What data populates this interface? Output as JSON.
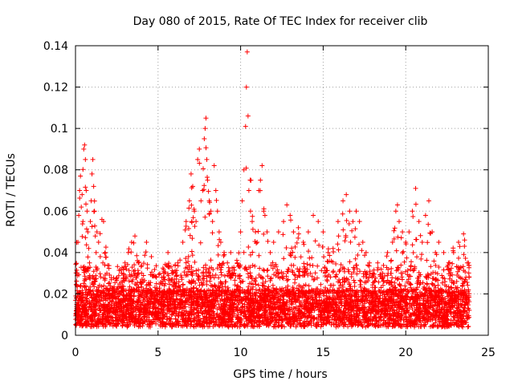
{
  "chart_data": {
    "type": "scatter",
    "title": "Day 080 of 2015, Rate Of TEC Index for receiver clib",
    "xlabel": "GPS time / hours",
    "ylabel": "ROTI / TECUs",
    "xlim": [
      0,
      25
    ],
    "ylim": [
      0,
      0.14
    ],
    "xticks": [
      0,
      5,
      10,
      15,
      20,
      25
    ],
    "xtick_labels": [
      "0",
      "5",
      "10",
      "15",
      "20",
      "25"
    ],
    "yticks": [
      0,
      0.02,
      0.04,
      0.06,
      0.08,
      0.1,
      0.12,
      0.14
    ],
    "ytick_labels": [
      "0",
      "0.02",
      "0.04",
      "0.06",
      "0.08",
      "0.1",
      "0.12",
      "0.14"
    ],
    "grid": true,
    "marker": "+",
    "marker_color": "#ff0000",
    "series": [
      {
        "name": "ROTI",
        "points": [
          [
            0.05,
            0.012
          ],
          [
            0.1,
            0.03
          ],
          [
            0.15,
            0.045
          ],
          [
            0.2,
            0.058
          ],
          [
            0.25,
            0.07
          ],
          [
            0.3,
            0.077
          ],
          [
            0.35,
            0.062
          ],
          [
            0.4,
            0.068
          ],
          [
            0.45,
            0.055
          ],
          [
            0.5,
            0.09
          ],
          [
            0.55,
            0.092
          ],
          [
            0.6,
            0.085
          ],
          [
            0.65,
            0.07
          ],
          [
            0.7,
            0.06
          ],
          [
            0.75,
            0.05
          ],
          [
            0.8,
            0.042
          ],
          [
            0.85,
            0.035
          ],
          [
            0.9,
            0.055
          ],
          [
            0.95,
            0.065
          ],
          [
            1.0,
            0.078
          ],
          [
            1.05,
            0.085
          ],
          [
            1.1,
            0.072
          ],
          [
            1.15,
            0.06
          ],
          [
            1.2,
            0.048
          ],
          [
            1.25,
            0.04
          ],
          [
            1.3,
            0.05
          ],
          [
            1.4,
            0.045
          ],
          [
            1.5,
            0.038
          ],
          [
            1.6,
            0.056
          ],
          [
            1.7,
            0.055
          ],
          [
            1.8,
            0.04
          ],
          [
            1.9,
            0.03
          ],
          [
            2.0,
            0.025
          ],
          [
            2.2,
            0.02
          ],
          [
            2.5,
            0.022
          ],
          [
            2.8,
            0.03
          ],
          [
            3.0,
            0.035
          ],
          [
            3.2,
            0.04
          ],
          [
            3.4,
            0.045
          ],
          [
            3.6,
            0.048
          ],
          [
            3.8,
            0.035
          ],
          [
            4.0,
            0.03
          ],
          [
            4.3,
            0.045
          ],
          [
            4.6,
            0.038
          ],
          [
            4.9,
            0.028
          ],
          [
            5.3,
            0.025
          ],
          [
            5.6,
            0.04
          ],
          [
            5.9,
            0.03
          ],
          [
            6.2,
            0.035
          ],
          [
            6.5,
            0.045
          ],
          [
            6.7,
            0.055
          ],
          [
            6.9,
            0.065
          ],
          [
            7.0,
            0.078
          ],
          [
            7.1,
            0.072
          ],
          [
            7.2,
            0.06
          ],
          [
            7.3,
            0.055
          ],
          [
            7.4,
            0.085
          ],
          [
            7.5,
            0.09
          ],
          [
            7.6,
            0.065
          ],
          [
            7.7,
            0.07
          ],
          [
            7.8,
            0.095
          ],
          [
            7.85,
            0.1
          ],
          [
            7.9,
            0.105
          ],
          [
            7.95,
            0.085
          ],
          [
            8.0,
            0.075
          ],
          [
            8.1,
            0.065
          ],
          [
            8.2,
            0.06
          ],
          [
            8.3,
            0.055
          ],
          [
            8.4,
            0.082
          ],
          [
            8.5,
            0.07
          ],
          [
            8.6,
            0.06
          ],
          [
            8.7,
            0.05
          ],
          [
            8.8,
            0.045
          ],
          [
            9.0,
            0.04
          ],
          [
            9.2,
            0.035
          ],
          [
            9.4,
            0.04
          ],
          [
            9.6,
            0.03
          ],
          [
            9.8,
            0.035
          ],
          [
            10.0,
            0.05
          ],
          [
            10.1,
            0.065
          ],
          [
            10.2,
            0.08
          ],
          [
            10.3,
            0.101
          ],
          [
            10.35,
            0.12
          ],
          [
            10.4,
            0.137
          ],
          [
            10.45,
            0.106
          ],
          [
            10.5,
            0.07
          ],
          [
            10.6,
            0.06
          ],
          [
            10.7,
            0.055
          ],
          [
            10.9,
            0.05
          ],
          [
            11.0,
            0.045
          ],
          [
            11.1,
            0.07
          ],
          [
            11.2,
            0.075
          ],
          [
            11.3,
            0.082
          ],
          [
            11.4,
            0.06
          ],
          [
            11.6,
            0.05
          ],
          [
            11.8,
            0.04
          ],
          [
            12.0,
            0.045
          ],
          [
            12.3,
            0.05
          ],
          [
            12.6,
            0.055
          ],
          [
            12.8,
            0.063
          ],
          [
            13.0,
            0.058
          ],
          [
            13.2,
            0.05
          ],
          [
            13.5,
            0.052
          ],
          [
            13.8,
            0.045
          ],
          [
            14.1,
            0.05
          ],
          [
            14.4,
            0.058
          ],
          [
            14.7,
            0.055
          ],
          [
            15.0,
            0.05
          ],
          [
            15.3,
            0.04
          ],
          [
            15.6,
            0.042
          ],
          [
            15.9,
            0.055
          ],
          [
            16.2,
            0.065
          ],
          [
            16.4,
            0.068
          ],
          [
            16.6,
            0.06
          ],
          [
            16.8,
            0.055
          ],
          [
            17.0,
            0.06
          ],
          [
            17.2,
            0.055
          ],
          [
            17.4,
            0.045
          ],
          [
            17.6,
            0.04
          ],
          [
            17.8,
            0.035
          ],
          [
            18.0,
            0.03
          ],
          [
            18.3,
            0.035
          ],
          [
            18.6,
            0.03
          ],
          [
            18.9,
            0.04
          ],
          [
            19.2,
            0.045
          ],
          [
            19.4,
            0.06
          ],
          [
            19.5,
            0.063
          ],
          [
            19.6,
            0.055
          ],
          [
            19.8,
            0.05
          ],
          [
            20.0,
            0.045
          ],
          [
            20.2,
            0.05
          ],
          [
            20.4,
            0.06
          ],
          [
            20.6,
            0.071
          ],
          [
            20.8,
            0.055
          ],
          [
            21.0,
            0.045
          ],
          [
            21.2,
            0.058
          ],
          [
            21.4,
            0.065
          ],
          [
            21.6,
            0.05
          ],
          [
            21.8,
            0.04
          ],
          [
            22.0,
            0.045
          ],
          [
            22.3,
            0.04
          ],
          [
            22.6,
            0.035
          ],
          [
            22.9,
            0.04
          ],
          [
            23.2,
            0.045
          ],
          [
            23.5,
            0.049
          ],
          [
            23.8,
            0.035
          ]
        ]
      }
    ]
  }
}
